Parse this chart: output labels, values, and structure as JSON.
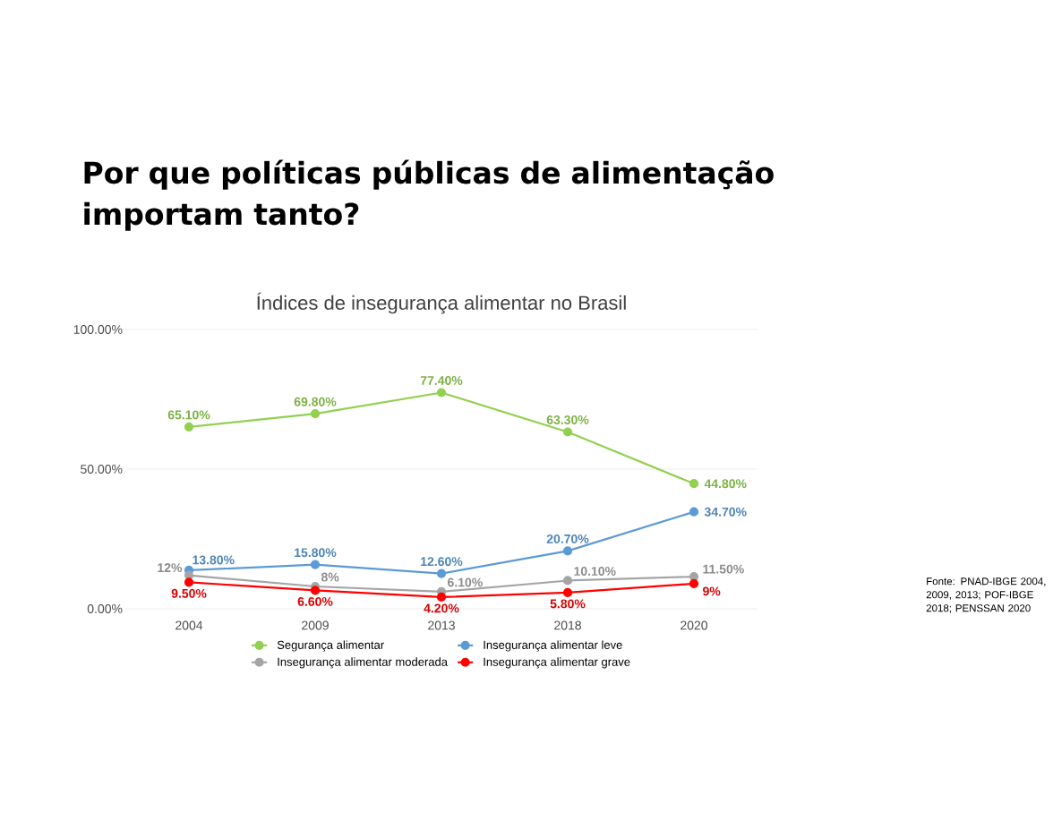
{
  "chart_data": {
    "type": "line",
    "title": "Por que políticas públicas de alimentação importam tanto?",
    "subtitle": "Índices de insegurança alimentar no Brasil",
    "categories": [
      "2004",
      "2009",
      "2013",
      "2018",
      "2020"
    ],
    "series": [
      {
        "name": "Segurança alimentar",
        "color": "#92d050",
        "values": [
          65.1,
          69.8,
          77.4,
          63.3,
          44.8
        ],
        "value_labels": [
          "65.10%",
          "69.80%",
          "77.40%",
          "63.30%",
          "44.80%"
        ]
      },
      {
        "name": "Insegurança alimentar leve",
        "color": "#5b9bd5",
        "values": [
          13.8,
          15.8,
          12.6,
          20.7,
          34.7
        ],
        "value_labels": [
          "13.80%",
          "15.80%",
          "12.60%",
          "20.70%",
          "34.70%"
        ]
      },
      {
        "name": "Insegurança alimentar moderada",
        "color": "#a5a5a5",
        "values": [
          12,
          8,
          6.1,
          10.1,
          11.5
        ],
        "value_labels": [
          "12%",
          "8%",
          "6.10%",
          "10.10%",
          "11.50%"
        ]
      },
      {
        "name": "Insegurança alimentar grave",
        "color": "#ff0000",
        "values": [
          9.5,
          6.6,
          4.2,
          5.8,
          9
        ],
        "value_labels": [
          "9.50%",
          "6.60%",
          "4.20%",
          "5.80%",
          "9%"
        ]
      }
    ],
    "ylim": [
      0,
      100
    ],
    "yticks": [
      {
        "value": 0,
        "label": "0.00%"
      },
      {
        "value": 50,
        "label": "50.00%"
      },
      {
        "value": 100,
        "label": "100.00%"
      }
    ],
    "grid": "y",
    "legend": "bottom",
    "marker": "circle",
    "line_style": "solid",
    "annotations": [
      "Fonte: PNAD-IBGE 2004, 2009, 2013; POF-IBGE 2018; PENSSAN 2020"
    ]
  }
}
